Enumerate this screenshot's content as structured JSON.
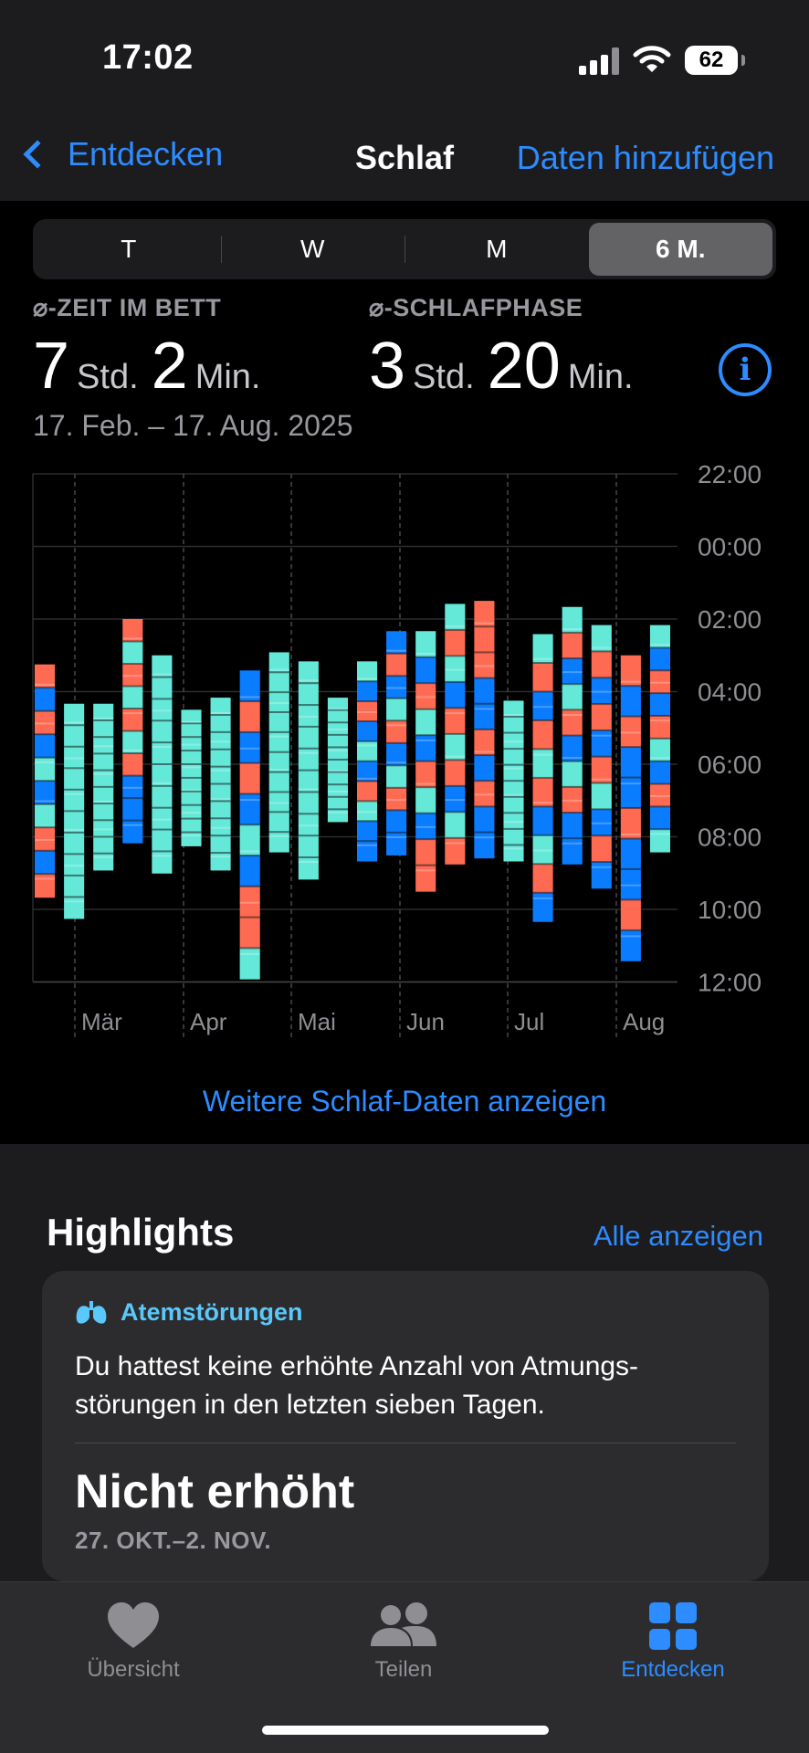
{
  "status_bar": {
    "time": "17:02",
    "battery": "62"
  },
  "nav": {
    "back_label": "Entdecken",
    "title": "Schlaf",
    "action_label": "Daten hinzufügen"
  },
  "segments": [
    {
      "label": "T",
      "active": false
    },
    {
      "label": "W",
      "active": false
    },
    {
      "label": "M",
      "active": false
    },
    {
      "label": "6 M.",
      "active": true
    }
  ],
  "stats": {
    "in_bed": {
      "label": "⌀-ZEIT IM BETT",
      "hours": "7",
      "hours_unit": "Std.",
      "minutes": "2",
      "minutes_unit": "Min."
    },
    "sleep": {
      "label": "⌀-SCHLAFPHASE",
      "hours": "3",
      "hours_unit": "Std.",
      "minutes": "20",
      "minutes_unit": "Min."
    },
    "date_range": "17. Feb. – 17. Aug. 2025"
  },
  "chart_data": {
    "type": "range-bar",
    "y_tick_labels": [
      "22:00",
      "00:00",
      "02:00",
      "04:00",
      "06:00",
      "08:00",
      "10:00",
      "12:00"
    ],
    "x_tick_labels": [
      "Mär",
      "Apr",
      "Mai",
      "Jun",
      "Jul",
      "Aug"
    ],
    "y_range_hours_after_22": [
      0,
      14
    ],
    "colors": {
      "red": "#ff6b52",
      "blue": "#0a7cff",
      "cyan": "#64e9d9"
    },
    "bars": [
      {
        "start": "03:15",
        "end": "09:40",
        "stages": [
          "red",
          "blue",
          "red",
          "blue",
          "cyan",
          "blue",
          "cyan",
          "red",
          "blue",
          "red"
        ]
      },
      {
        "start": "04:20",
        "end": "10:15",
        "stages": [
          "cyan",
          "cyan",
          "cyan",
          "cyan",
          "cyan",
          "cyan",
          "cyan",
          "cyan",
          "cyan",
          "cyan"
        ]
      },
      {
        "start": "04:20",
        "end": "08:55",
        "stages": [
          "cyan",
          "cyan",
          "cyan",
          "cyan",
          "cyan",
          "cyan",
          "cyan",
          "cyan",
          "cyan",
          "cyan"
        ]
      },
      {
        "start": "02:00",
        "end": "08:10",
        "stages": [
          "red",
          "cyan",
          "red",
          "cyan",
          "red",
          "cyan",
          "red",
          "blue",
          "blue",
          "blue"
        ]
      },
      {
        "start": "03:00",
        "end": "09:00",
        "stages": [
          "cyan",
          "cyan",
          "cyan",
          "cyan",
          "cyan",
          "cyan",
          "cyan",
          "cyan",
          "cyan",
          "cyan"
        ]
      },
      {
        "start": "04:30",
        "end": "08:15",
        "stages": [
          "cyan",
          "cyan",
          "cyan",
          "cyan",
          "cyan",
          "cyan",
          "cyan",
          "cyan",
          "cyan",
          "cyan"
        ]
      },
      {
        "start": "04:10",
        "end": "08:55",
        "stages": [
          "cyan",
          "cyan",
          "cyan",
          "cyan",
          "cyan",
          "cyan",
          "cyan",
          "cyan",
          "cyan",
          "cyan"
        ]
      },
      {
        "start": "03:25",
        "end": "11:55",
        "stages": [
          "blue",
          "red",
          "blue",
          "red",
          "blue",
          "cyan",
          "blue",
          "red",
          "red",
          "cyan"
        ]
      },
      {
        "start": "02:55",
        "end": "08:25",
        "stages": [
          "cyan",
          "cyan",
          "cyan",
          "cyan",
          "cyan",
          "cyan",
          "cyan",
          "cyan",
          "cyan",
          "cyan"
        ]
      },
      {
        "start": "03:10",
        "end": "09:10",
        "stages": [
          "cyan",
          "cyan",
          "cyan",
          "cyan",
          "cyan",
          "cyan",
          "cyan",
          "cyan",
          "cyan",
          "cyan"
        ]
      },
      {
        "start": "04:10",
        "end": "07:35",
        "stages": [
          "cyan",
          "cyan",
          "cyan",
          "cyan",
          "cyan",
          "cyan",
          "cyan",
          "cyan",
          "cyan",
          "cyan"
        ]
      },
      {
        "start": "03:10",
        "end": "08:40",
        "stages": [
          "cyan",
          "blue",
          "red",
          "blue",
          "cyan",
          "blue",
          "red",
          "cyan",
          "blue",
          "blue"
        ]
      },
      {
        "start": "02:20",
        "end": "08:30",
        "stages": [
          "blue",
          "red",
          "blue",
          "cyan",
          "red",
          "blue",
          "cyan",
          "red",
          "blue",
          "blue"
        ]
      },
      {
        "start": "02:20",
        "end": "09:30",
        "stages": [
          "cyan",
          "blue",
          "red",
          "cyan",
          "blue",
          "red",
          "cyan",
          "blue",
          "red",
          "red"
        ]
      },
      {
        "start": "01:35",
        "end": "08:45",
        "stages": [
          "cyan",
          "red",
          "cyan",
          "blue",
          "red",
          "cyan",
          "red",
          "blue",
          "cyan",
          "red"
        ]
      },
      {
        "start": "01:30",
        "end": "08:35",
        "stages": [
          "red",
          "red",
          "red",
          "blue",
          "blue",
          "red",
          "blue",
          "red",
          "blue",
          "blue"
        ]
      },
      {
        "start": "04:15",
        "end": "08:40",
        "stages": [
          "cyan",
          "cyan",
          "cyan",
          "cyan",
          "cyan",
          "cyan",
          "cyan",
          "cyan",
          "cyan",
          "cyan"
        ]
      },
      {
        "start": "02:25",
        "end": "10:20",
        "stages": [
          "cyan",
          "red",
          "blue",
          "red",
          "cyan",
          "red",
          "blue",
          "cyan",
          "red",
          "blue"
        ]
      },
      {
        "start": "01:40",
        "end": "08:45",
        "stages": [
          "cyan",
          "red",
          "blue",
          "cyan",
          "red",
          "blue",
          "cyan",
          "red",
          "blue",
          "blue"
        ]
      },
      {
        "start": "02:10",
        "end": "09:25",
        "stages": [
          "cyan",
          "red",
          "blue",
          "red",
          "blue",
          "red",
          "cyan",
          "blue",
          "red",
          "blue"
        ]
      },
      {
        "start": "03:00",
        "end": "11:25",
        "stages": [
          "red",
          "blue",
          "red",
          "blue",
          "blue",
          "red",
          "blue",
          "blue",
          "red",
          "blue"
        ]
      },
      {
        "start": "02:10",
        "end": "08:25",
        "stages": [
          "cyan",
          "blue",
          "red",
          "blue",
          "red",
          "cyan",
          "blue",
          "red",
          "blue",
          "cyan"
        ]
      }
    ]
  },
  "chart_link": "Weitere Schlaf-Daten anzeigen",
  "highlights": {
    "title": "Highlights",
    "see_all": "Alle anzeigen",
    "card": {
      "category": "Atemstörungen",
      "text": "Du hattest keine erhöhte Anzahl von Atmungs-störungen in den letzten sieben Tagen.",
      "value": "Nicht erhöht",
      "date": "27. OKT.–2. NOV."
    }
  },
  "tabbar": [
    {
      "label": "Übersicht",
      "icon": "heart-icon",
      "active": false
    },
    {
      "label": "Teilen",
      "icon": "people-icon",
      "active": false
    },
    {
      "label": "Entdecken",
      "icon": "grid-icon",
      "active": true
    }
  ]
}
